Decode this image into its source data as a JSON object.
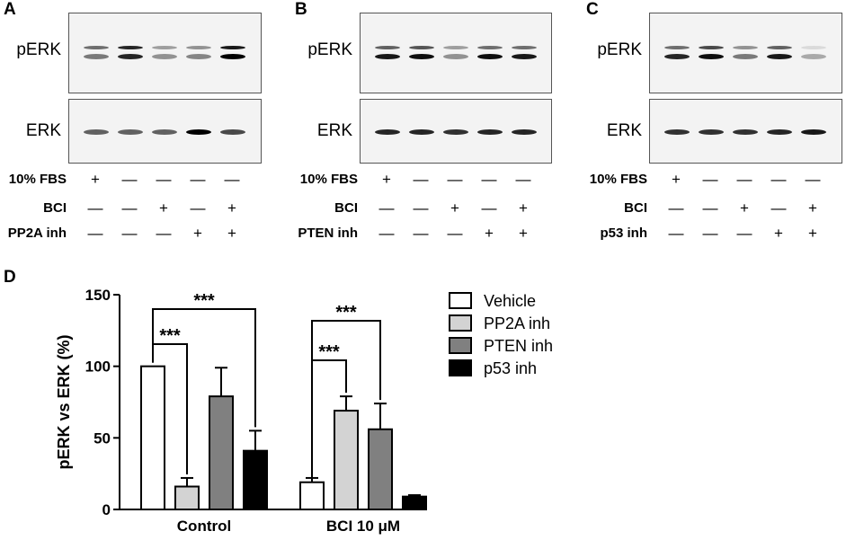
{
  "panels": [
    {
      "letter": "A",
      "top_label": "pERK",
      "bottom_label": "ERK",
      "conditions": [
        {
          "label": "10% FBS",
          "marks": [
            "+",
            "—",
            "—",
            "—",
            "—"
          ]
        },
        {
          "label": "BCI",
          "marks": [
            "—",
            "—",
            "+",
            "—",
            "+"
          ]
        },
        {
          "label": "PP2A inh",
          "marks": [
            "—",
            "—",
            "—",
            "+",
            "+"
          ]
        }
      ]
    },
    {
      "letter": "B",
      "top_label": "pERK",
      "bottom_label": "ERK",
      "conditions": [
        {
          "label": "10% FBS",
          "marks": [
            "+",
            "—",
            "—",
            "—",
            "—"
          ]
        },
        {
          "label": "BCI",
          "marks": [
            "—",
            "—",
            "+",
            "—",
            "+"
          ]
        },
        {
          "label": "PTEN inh",
          "marks": [
            "—",
            "—",
            "—",
            "+",
            "+"
          ]
        }
      ]
    },
    {
      "letter": "C",
      "top_label": "pERK",
      "bottom_label": "ERK",
      "conditions": [
        {
          "label": "10% FBS",
          "marks": [
            "+",
            "—",
            "—",
            "—",
            "—"
          ]
        },
        {
          "label": "BCI",
          "marks": [
            "—",
            "—",
            "+",
            "—",
            "+"
          ]
        },
        {
          "label": "p53 inh",
          "marks": [
            "—",
            "—",
            "—",
            "+",
            "+"
          ]
        }
      ]
    }
  ],
  "chart_letter": "D",
  "chart_data": {
    "type": "bar",
    "ylabel": "pERK vs ERK (%)",
    "ylim": [
      0,
      150
    ],
    "yticks": [
      0,
      50,
      100,
      150
    ],
    "categories": [
      "Control",
      "BCI 10 μM"
    ],
    "series": [
      {
        "name": "Vehicle",
        "color": "#ffffff",
        "values": [
          100,
          19
        ],
        "errors": [
          0,
          3
        ]
      },
      {
        "name": "PP2A inh",
        "color": "#d3d3d3",
        "values": [
          16,
          69
        ],
        "errors": [
          6,
          10
        ]
      },
      {
        "name": "PTEN inh",
        "color": "#808080",
        "values": [
          79,
          56
        ],
        "errors": [
          20,
          18
        ]
      },
      {
        "name": "p53 inh",
        "color": "#000000",
        "values": [
          41,
          9
        ],
        "errors": [
          14,
          1
        ]
      }
    ],
    "significance": [
      {
        "category": 0,
        "from_series": 0,
        "to_series": 1,
        "label": "***"
      },
      {
        "category": 0,
        "from_series": 0,
        "to_series": 3,
        "label": "***"
      },
      {
        "category": 1,
        "from_series": 0,
        "to_series": 1,
        "label": "***"
      },
      {
        "category": 1,
        "from_series": 0,
        "to_series": 2,
        "label": "***"
      }
    ],
    "legend_position": "top-right"
  }
}
